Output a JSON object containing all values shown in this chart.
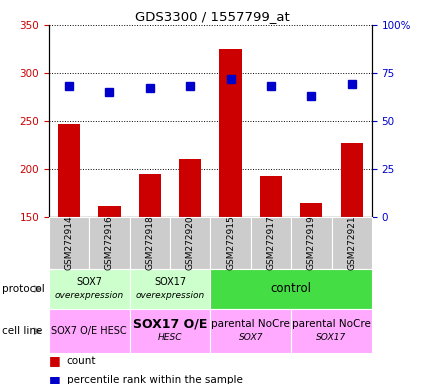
{
  "title": "GDS3300 / 1557799_at",
  "samples": [
    "GSM272914",
    "GSM272916",
    "GSM272918",
    "GSM272920",
    "GSM272915",
    "GSM272917",
    "GSM272919",
    "GSM272921"
  ],
  "counts": [
    247,
    161,
    195,
    210,
    325,
    193,
    165,
    227
  ],
  "percentiles": [
    68,
    65,
    67,
    68,
    72,
    68,
    63,
    69
  ],
  "ylim_left": [
    150,
    350
  ],
  "ylim_right": [
    0,
    100
  ],
  "yticks_left": [
    150,
    200,
    250,
    300,
    350
  ],
  "yticks_right": [
    0,
    25,
    50,
    75,
    100
  ],
  "bar_color": "#cc0000",
  "dot_color": "#0000cc",
  "protocol_groups": [
    {
      "label": "SOX7\noverexpression",
      "start": 0,
      "end": 2,
      "color": "#ccffcc"
    },
    {
      "label": "SOX17\noverexpression",
      "start": 2,
      "end": 4,
      "color": "#ccffcc"
    },
    {
      "label": "control",
      "start": 4,
      "end": 8,
      "color": "#44dd44"
    }
  ],
  "cellline_groups": [
    {
      "label": "SOX7 O/E HESC",
      "start": 0,
      "end": 2,
      "color": "#ffaaff",
      "fontsize": 7,
      "bold": false
    },
    {
      "label": "SOX17 O/E\nHESC",
      "start": 2,
      "end": 4,
      "color": "#ffaaff",
      "fontsize": 9,
      "bold": true
    },
    {
      "label": "parental NoCre\nSOX7",
      "start": 4,
      "end": 6,
      "color": "#ffaaff",
      "fontsize": 7.5,
      "bold": false
    },
    {
      "label": "parental NoCre\nSOX17",
      "start": 6,
      "end": 8,
      "color": "#ffaaff",
      "fontsize": 7.5,
      "bold": false
    }
  ],
  "grid_color": "#000000",
  "tick_label_color_left": "#cc0000",
  "tick_label_color_right": "#0000cc",
  "background_color": "#ffffff",
  "table_bg": "#cccccc"
}
